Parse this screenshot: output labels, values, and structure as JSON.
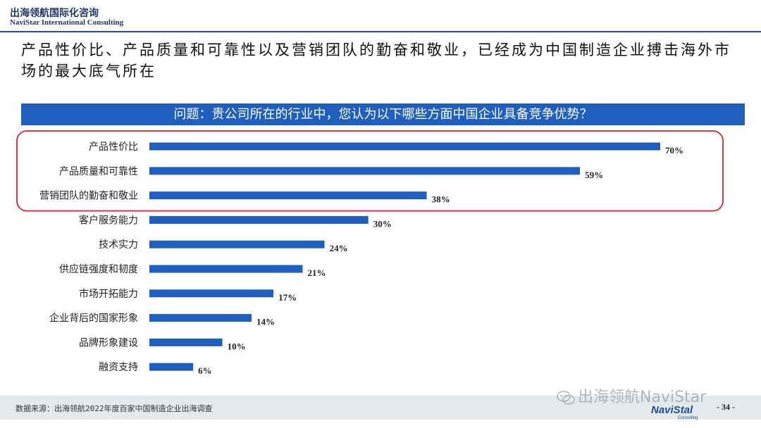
{
  "header": {
    "brand_cn": "出海领航国际化咨询",
    "brand_en": "NaviStar International Consulting"
  },
  "headline": "产品性价比、产品质量和可靠性以及营销团队的勤奋和敬业，已经成为中国制造企业搏击海外市场的最大底气所在",
  "question": "问题：贵公司所在的行业中，您认为以下哪些方面中国企业具备竞争优势？",
  "chart_data": {
    "type": "bar",
    "orientation": "horizontal",
    "categories": [
      "产品性价比",
      "产品质量和可靠性",
      "营销团队的勤奋和敬业",
      "客户服务能力",
      "技术实力",
      "供应链强度和韧度",
      "市场开拓能力",
      "企业背后的国家形象",
      "品牌形象建设",
      "融资支持"
    ],
    "values": [
      70,
      59,
      38,
      30,
      24,
      21,
      17,
      14,
      10,
      6
    ],
    "labels": [
      "70%",
      "59%",
      "38%",
      "30%",
      "24%",
      "21%",
      "17%",
      "14%",
      "10%",
      "6%"
    ],
    "value_unit": "%",
    "bar_color": "#1f5fbf",
    "highlight_color": "#e0202a",
    "highlighted_categories": 3,
    "xlim": [
      0,
      70
    ]
  },
  "footer": {
    "source": "数据来源：出海领航2022年度百家中国制造企业出海调查",
    "watermark": "出海领航NaviStar",
    "logo_name": "NaviStal",
    "logo_sub": "Consulting",
    "page": "- 34 -"
  }
}
